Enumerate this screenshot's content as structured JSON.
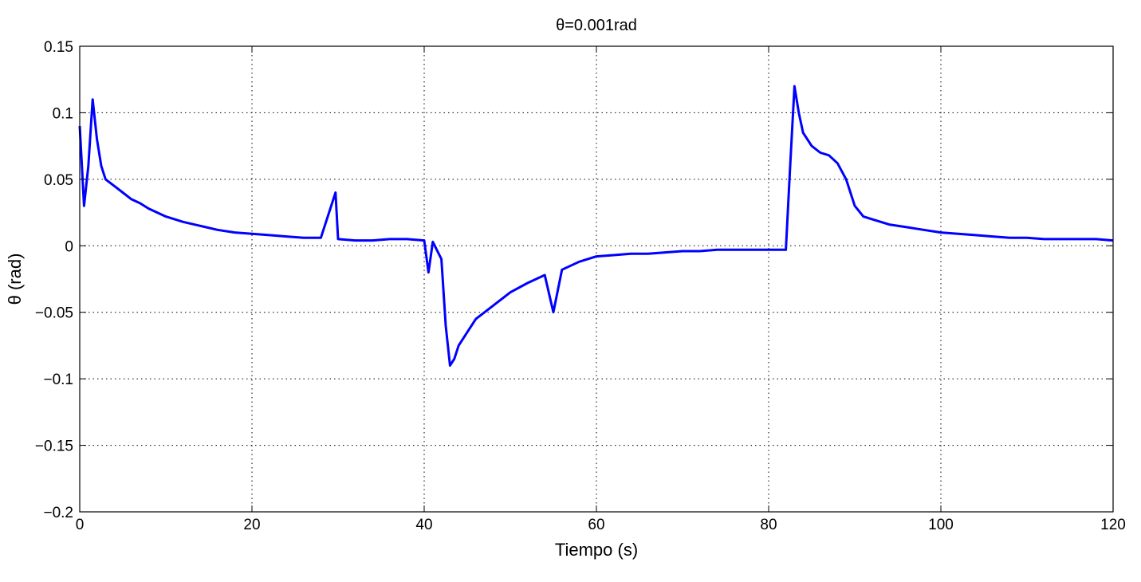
{
  "chart_data": {
    "type": "line",
    "title": "θ=0.001rad",
    "xlabel": "Tiempo (s)",
    "ylabel": "θ (rad)",
    "xlim": [
      0,
      120
    ],
    "ylim": [
      -0.2,
      0.15
    ],
    "xticks": [
      0,
      20,
      40,
      60,
      80,
      100,
      120
    ],
    "xtick_labels": [
      "0",
      "20",
      "40",
      "60",
      "80",
      "100",
      "120"
    ],
    "yticks": [
      -0.2,
      -0.15,
      -0.1,
      -0.05,
      0,
      0.05,
      0.1,
      0.15
    ],
    "ytick_labels": [
      "−0.2",
      "−0.15",
      "−0.1",
      "−0.05",
      "0",
      "0.05",
      "0.1",
      "0.15"
    ],
    "grid": true,
    "grid_style": "dotted",
    "series": [
      {
        "color": "#0000ff",
        "x": [
          0,
          0.5,
          1,
          1.5,
          2,
          2.5,
          3,
          4,
          5,
          6,
          7,
          8,
          9,
          10,
          12,
          14,
          16,
          18,
          20,
          22,
          24,
          26,
          28,
          29.7,
          30,
          32,
          34,
          36,
          38,
          40,
          40.5,
          41,
          42,
          42.5,
          43,
          43.5,
          44,
          45,
          46,
          48,
          50,
          52,
          54,
          55,
          56,
          58,
          60,
          62,
          64,
          66,
          68,
          70,
          72,
          74,
          76,
          78,
          80,
          82,
          82.5,
          83,
          83.5,
          84,
          85,
          86,
          87,
          88,
          89,
          90,
          91,
          92,
          94,
          96,
          98,
          100,
          102,
          104,
          106,
          108,
          110,
          112,
          114,
          116,
          118,
          120
        ],
        "y": [
          0.09,
          0.03,
          0.06,
          0.11,
          0.08,
          0.06,
          0.05,
          0.045,
          0.04,
          0.035,
          0.032,
          0.028,
          0.025,
          0.022,
          0.018,
          0.015,
          0.012,
          0.01,
          0.009,
          0.008,
          0.007,
          0.006,
          0.006,
          0.04,
          0.005,
          0.004,
          0.004,
          0.005,
          0.005,
          0.004,
          -0.02,
          0.003,
          -0.01,
          -0.06,
          -0.09,
          -0.085,
          -0.075,
          -0.065,
          -0.055,
          -0.045,
          -0.035,
          -0.028,
          -0.022,
          -0.05,
          -0.018,
          -0.012,
          -0.008,
          -0.007,
          -0.006,
          -0.006,
          -0.005,
          -0.004,
          -0.004,
          -0.003,
          -0.003,
          -0.003,
          -0.003,
          -0.003,
          0.06,
          0.12,
          0.1,
          0.085,
          0.075,
          0.07,
          0.068,
          0.062,
          0.05,
          0.03,
          0.022,
          0.02,
          0.016,
          0.014,
          0.012,
          0.01,
          0.009,
          0.008,
          0.007,
          0.006,
          0.006,
          0.005,
          0.005,
          0.005,
          0.005,
          0.004
        ]
      }
    ]
  }
}
